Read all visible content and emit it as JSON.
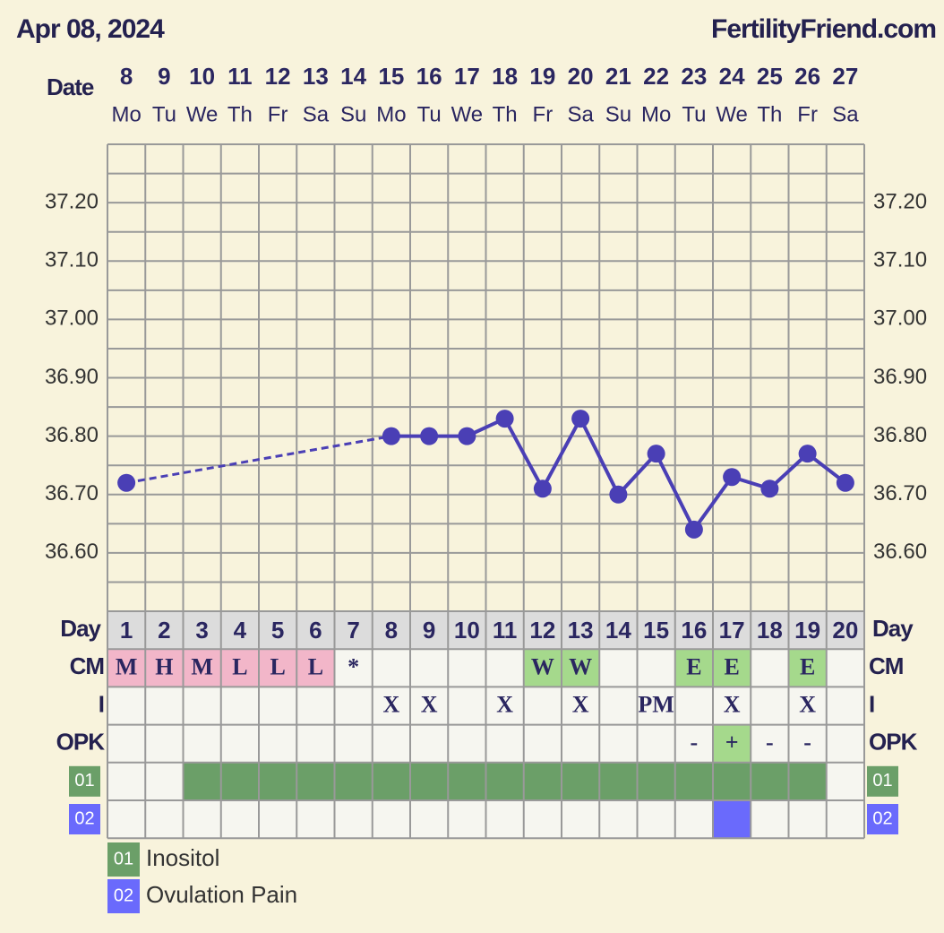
{
  "header": {
    "date": "Apr 08, 2024",
    "site": "FertilityFriend.com"
  },
  "chart_data": {
    "type": "line",
    "x_label": "Date",
    "x": [
      "8",
      "9",
      "10",
      "11",
      "12",
      "13",
      "14",
      "15",
      "16",
      "17",
      "18",
      "19",
      "20",
      "21",
      "22",
      "23",
      "24",
      "25",
      "26",
      "27"
    ],
    "weekdays": [
      "Mo",
      "Tu",
      "We",
      "Th",
      "Fr",
      "Sa",
      "Su",
      "Mo",
      "Tu",
      "We",
      "Th",
      "Fr",
      "Sa",
      "Su",
      "Mo",
      "Tu",
      "We",
      "Th",
      "Fr",
      "Sa"
    ],
    "series": [
      {
        "color": "#4a3fb5",
        "values": [
          36.72,
          null,
          null,
          null,
          null,
          null,
          null,
          36.8,
          36.8,
          36.8,
          36.83,
          36.71,
          36.83,
          36.7,
          36.77,
          36.64,
          36.73,
          36.71,
          36.77,
          36.72
        ]
      }
    ],
    "ylim": [
      36.5,
      37.3
    ],
    "yticks": [
      {
        "value": 36.6,
        "label": "36.60"
      },
      {
        "value": 36.7,
        "label": "36.70"
      },
      {
        "value": 36.8,
        "label": "36.80"
      },
      {
        "value": 36.9,
        "label": "36.90"
      },
      {
        "value": 37.0,
        "label": "37.00"
      },
      {
        "value": 37.1,
        "label": "37.10"
      },
      {
        "value": 37.2,
        "label": "37.20"
      }
    ],
    "grid": true
  },
  "table": {
    "day_label": "Day",
    "days": [
      1,
      2,
      3,
      4,
      5,
      6,
      7,
      8,
      9,
      10,
      11,
      12,
      13,
      14,
      15,
      16,
      17,
      18,
      19,
      20
    ],
    "rows": [
      {
        "label": "CM",
        "cells": [
          "M",
          "H",
          "M",
          "L",
          "L",
          "L",
          "*",
          null,
          null,
          null,
          null,
          "W",
          "W",
          null,
          null,
          "E",
          "E",
          null,
          "E",
          null
        ],
        "colors": [
          "#f2b6c9",
          "#f2b6c9",
          "#f2b6c9",
          "#f2b6c9",
          "#f2b6c9",
          "#f2b6c9",
          null,
          null,
          null,
          null,
          null,
          "#a5d98c",
          "#a5d98c",
          null,
          null,
          "#a5d98c",
          "#a5d98c",
          null,
          "#a5d98c",
          null
        ]
      },
      {
        "label": "I",
        "cells": [
          null,
          null,
          null,
          null,
          null,
          null,
          null,
          "X",
          "X",
          null,
          "X",
          null,
          "X",
          null,
          "PM",
          null,
          "X",
          null,
          "X",
          null
        ],
        "colors": []
      },
      {
        "label": "OPK",
        "cells": [
          null,
          null,
          null,
          null,
          null,
          null,
          null,
          null,
          null,
          null,
          null,
          null,
          null,
          null,
          null,
          "-",
          "+",
          "-",
          "-",
          null
        ],
        "colors": [
          null,
          null,
          null,
          null,
          null,
          null,
          null,
          null,
          null,
          null,
          null,
          null,
          null,
          null,
          null,
          null,
          "#a5d98c",
          null,
          null,
          null
        ]
      }
    ],
    "indicators": [
      {
        "code": "01",
        "name": "Inositol",
        "color": "#6b9f68",
        "days": [
          3,
          4,
          5,
          6,
          7,
          8,
          9,
          10,
          11,
          12,
          13,
          14,
          15,
          16,
          17,
          18,
          19
        ]
      },
      {
        "code": "02",
        "name": "Ovulation Pain",
        "color": "#6a6afc",
        "days": [
          17
        ]
      }
    ]
  }
}
